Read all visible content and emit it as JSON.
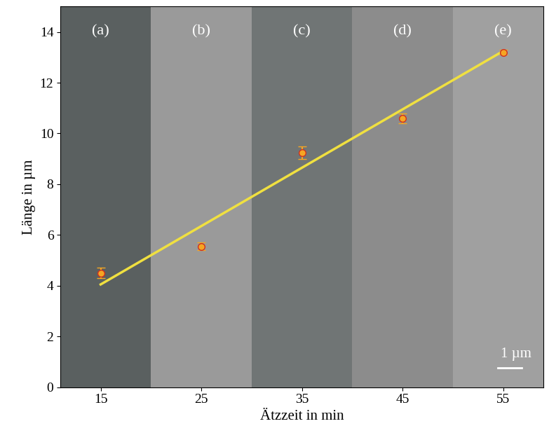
{
  "chart_data": {
    "type": "scatter",
    "x_label": "Ätzzeit in min",
    "y_label": "Länge in µm",
    "panel_labels": [
      "(a)",
      "(b)",
      "(c)",
      "(d)",
      "(e)"
    ],
    "scale_bar": "1 µm",
    "xlim": [
      11,
      59
    ],
    "ylim": [
      0,
      15
    ],
    "xticks": [
      15,
      25,
      35,
      45,
      55
    ],
    "yticks": [
      0,
      2,
      4,
      6,
      8,
      10,
      12,
      14
    ],
    "grid": false,
    "series": [
      {
        "type": "scatter",
        "color": "#f5a623",
        "marker": "o",
        "x": [
          15,
          25,
          35,
          45,
          55
        ],
        "values": [
          4.5,
          5.55,
          9.25,
          10.6,
          13.2
        ],
        "errors": [
          0.2,
          0.15,
          0.25,
          0.2,
          0.1
        ]
      },
      {
        "type": "line",
        "color": "#f0e040",
        "line_style": "solid",
        "x": [
          15,
          55
        ],
        "values": [
          4.05,
          13.25
        ]
      }
    ]
  }
}
